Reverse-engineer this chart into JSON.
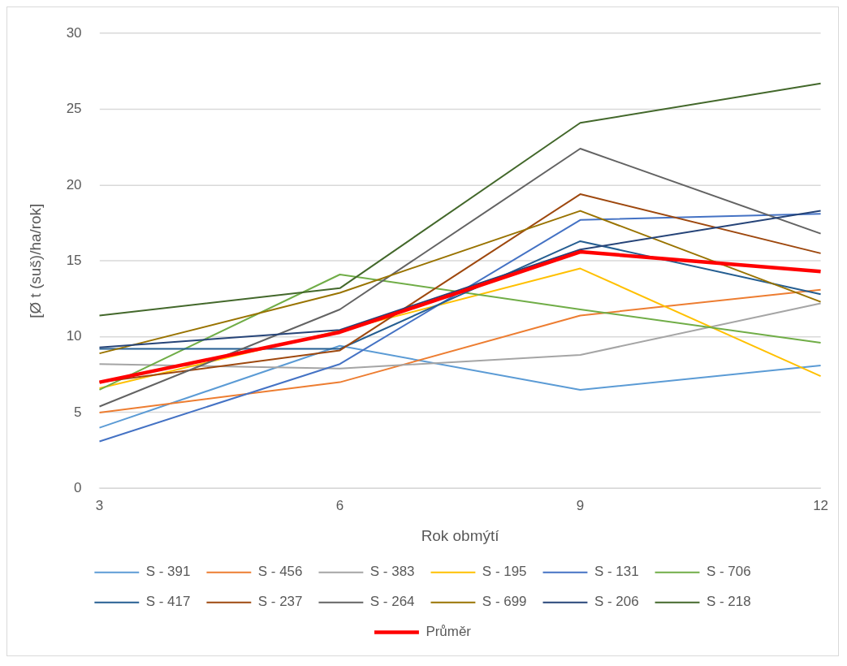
{
  "chart_data": {
    "type": "line",
    "xlabel": "Rok obmýtí",
    "ylabel": "[Ø t (suš)/ha/rok]",
    "categories": [
      "3",
      "6",
      "9",
      "12"
    ],
    "ylim": [
      0,
      30
    ],
    "yticks": [
      0,
      5,
      10,
      15,
      20,
      25,
      30
    ],
    "grid": "y",
    "legend": "bottom",
    "marker": "none",
    "series": [
      {
        "name": "S - 391",
        "color": "#5b9bd5",
        "values": [
          4.0,
          9.4,
          6.5,
          8.1
        ]
      },
      {
        "name": "S - 456",
        "color": "#ed7d31",
        "values": [
          5.0,
          7.0,
          11.4,
          13.1
        ]
      },
      {
        "name": "S - 383",
        "color": "#a5a5a5",
        "values": [
          8.2,
          7.9,
          8.8,
          12.2
        ]
      },
      {
        "name": "S - 195",
        "color": "#ffc000",
        "values": [
          6.6,
          10.4,
          14.5,
          7.4
        ]
      },
      {
        "name": "S - 131",
        "color": "#4472c4",
        "values": [
          3.1,
          8.2,
          17.7,
          18.1
        ]
      },
      {
        "name": "S - 706",
        "color": "#70ad47",
        "values": [
          6.5,
          14.1,
          11.8,
          9.6
        ]
      },
      {
        "name": "S - 417",
        "color": "#255e91",
        "values": [
          9.2,
          9.2,
          16.3,
          12.8
        ]
      },
      {
        "name": "S - 237",
        "color": "#9e480e",
        "values": [
          7.0,
          9.1,
          19.4,
          15.5
        ]
      },
      {
        "name": "S - 264",
        "color": "#636363",
        "values": [
          5.4,
          11.8,
          22.4,
          16.8
        ]
      },
      {
        "name": "S - 699",
        "color": "#997300",
        "values": [
          8.9,
          12.9,
          18.3,
          12.3
        ]
      },
      {
        "name": "S - 206",
        "color": "#264478",
        "values": [
          9.3,
          10.45,
          15.75,
          18.3
        ]
      },
      {
        "name": "S - 218",
        "color": "#43682b",
        "values": [
          11.4,
          13.2,
          24.1,
          26.7
        ]
      },
      {
        "name": "Průměr",
        "color": "#ff0000",
        "values": [
          7.0,
          10.3,
          15.6,
          14.3
        ]
      }
    ]
  }
}
